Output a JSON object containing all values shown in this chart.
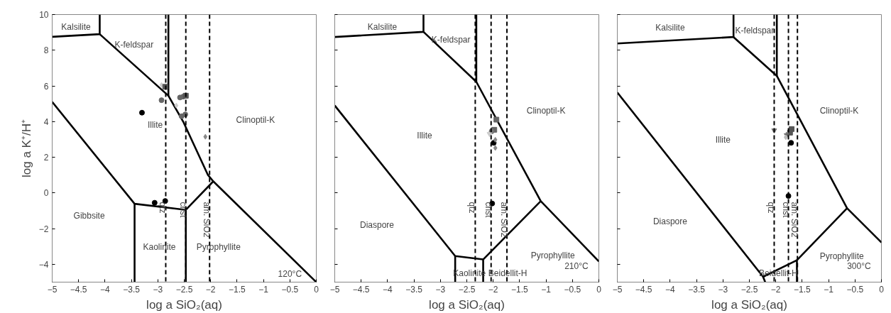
{
  "chart_data": [
    {
      "type": "line",
      "xlabel": "log a SiO₂(aq)",
      "ylabel": "log a K⁺/H⁺",
      "xlim": [
        -5,
        0
      ],
      "ylim": [
        -5,
        10
      ],
      "xticks": [
        -5,
        -4.5,
        -4,
        -3.5,
        -3,
        -2.5,
        -2,
        -1.5,
        -1,
        -0.5,
        0
      ],
      "yticks": [
        -4,
        -2,
        0,
        2,
        4,
        6,
        8,
        10
      ],
      "grid": false,
      "line_style": "solid",
      "series": [
        {
          "color": "#000000",
          "x": [
            -5,
            -4.1,
            -4.1
          ],
          "values": [
            8.75,
            8.9,
            10
          ]
        },
        {
          "color": "#000000",
          "x": [
            -4.1,
            -2.8,
            -2.8
          ],
          "values": [
            8.9,
            5.45,
            10
          ]
        },
        {
          "color": "#000000",
          "x": [
            -2.8,
            -2.52,
            -2.05,
            -1.95,
            0
          ],
          "values": [
            5.45,
            4.0,
            1.0,
            0.65,
            -5
          ]
        },
        {
          "color": "#000000",
          "x": [
            -1.95,
            -2.47,
            -2.47
          ],
          "values": [
            0.65,
            -0.95,
            -5
          ]
        },
        {
          "color": "#000000",
          "x": [
            -5,
            -3.44,
            -2.47
          ],
          "values": [
            5.1,
            -0.61,
            -0.95
          ]
        },
        {
          "color": "#000000",
          "x": [
            -3.44,
            -3.44
          ],
          "values": [
            -0.61,
            -5
          ]
        },
        {
          "type": "scatter",
          "marker": "circle",
          "color": "#000000",
          "x": [
            -3.3,
            -3.06,
            -2.86
          ],
          "values": [
            4.5,
            -0.55,
            -0.45
          ]
        },
        {
          "type": "scatter",
          "marker": "circle",
          "color": "#666666",
          "x": [
            -2.93,
            -2.58,
            -2.52,
            -2.55,
            -2.48
          ],
          "values": [
            5.2,
            5.35,
            5.4,
            4.3,
            4.4
          ]
        },
        {
          "type": "scatter",
          "marker": "diamond",
          "color": "#cccccc",
          "x": [
            -2.93,
            -2.65
          ],
          "values": [
            6.05,
            4.9
          ]
        },
        {
          "type": "scatter",
          "marker": "square",
          "color": "#555555",
          "x": [
            -2.86,
            -2.47
          ],
          "values": [
            5.95,
            5.45
          ]
        },
        {
          "type": "scatter",
          "marker": "diamond",
          "color": "#888888",
          "x": [
            -2.1
          ],
          "values": [
            3.15
          ]
        }
      ],
      "ref_lines": [
        {
          "axis": "x",
          "value": -2.85,
          "label": "qtz",
          "color": "#000000",
          "line_style": "dashed"
        },
        {
          "axis": "x",
          "value": -2.47,
          "label": "crist",
          "color": "#000000",
          "line_style": "dashed"
        },
        {
          "axis": "x",
          "value": -2.02,
          "label": "am. SiO2",
          "color": "#000000",
          "line_style": "dashed"
        }
      ],
      "annotations": [
        "Kalsilite",
        "K-feldspar",
        "Illite",
        "Clinoptil-K",
        "Gibbsite",
        "Kaolinite",
        "Pyrophyllite",
        "120°C"
      ]
    },
    {
      "type": "line",
      "xlabel": "log a SiO₂(aq)",
      "xlim": [
        -5,
        0
      ],
      "ylim": [
        -5,
        10
      ],
      "xticks": [
        -5,
        -4.5,
        -4,
        -3.5,
        -3,
        -2.5,
        -2,
        -1.5,
        -1,
        -0.5,
        0
      ],
      "yticks": [
        -4,
        -2,
        0,
        2,
        4,
        6,
        8,
        10
      ],
      "tick_labels": "x",
      "grid": false,
      "line_style": "solid",
      "series": [
        {
          "color": "#000000",
          "x": [
            -5,
            -3.32,
            -3.32
          ],
          "values": [
            8.74,
            9.03,
            10
          ]
        },
        {
          "color": "#000000",
          "x": [
            -3.32,
            -2.32,
            -2.32
          ],
          "values": [
            9.03,
            6.23,
            10
          ]
        },
        {
          "color": "#000000",
          "x": [
            -2.32,
            -1.1,
            0
          ],
          "values": [
            6.23,
            -0.46,
            -3.84
          ]
        },
        {
          "color": "#000000",
          "x": [
            -1.1,
            -2.19,
            -2.19
          ],
          "values": [
            -0.46,
            -3.73,
            -5
          ]
        },
        {
          "color": "#000000",
          "x": [
            -5,
            -2.72,
            -2.19
          ],
          "values": [
            4.9,
            -3.54,
            -3.73
          ]
        },
        {
          "color": "#000000",
          "x": [
            -2.72,
            -2.72
          ],
          "values": [
            -3.54,
            -5
          ]
        },
        {
          "type": "scatter",
          "marker": "circle",
          "color": "#000000",
          "x": [
            -1.99,
            -2.02
          ],
          "values": [
            2.81,
            -0.59
          ]
        },
        {
          "type": "scatter",
          "marker": "square",
          "color": "#666666",
          "x": [
            -1.94,
            -1.98
          ],
          "values": [
            4.11,
            3.54
          ]
        },
        {
          "type": "scatter",
          "marker": "circle",
          "color": "#777777",
          "x": [
            -2.03
          ],
          "values": [
            3.45
          ]
        },
        {
          "type": "scatter",
          "marker": "diamond",
          "color": "#888888",
          "x": [
            -1.96,
            -1.96
          ],
          "values": [
            2.98,
            2.52
          ]
        },
        {
          "type": "scatter",
          "marker": "triangle",
          "color": "#cccccc",
          "x": [
            -2.07
          ],
          "values": [
            3.31
          ]
        }
      ],
      "ref_lines": [
        {
          "axis": "x",
          "value": -2.34,
          "label": "qtz",
          "color": "#000000",
          "line_style": "dashed"
        },
        {
          "axis": "x",
          "value": -2.04,
          "label": "crist",
          "color": "#000000",
          "line_style": "dashed"
        },
        {
          "axis": "x",
          "value": -1.74,
          "label": "am. SiO2",
          "color": "#000000",
          "line_style": "dashed"
        }
      ],
      "annotations": [
        "Kalsilite",
        "K-feldspar",
        "Illite",
        "Clinoptil-K",
        "Diaspore",
        "Kaolinite",
        "Beidellit-H",
        "Pyrophyllite",
        "210°C"
      ]
    },
    {
      "type": "line",
      "xlabel": "log a SiO₂(aq)",
      "xlim": [
        -5,
        0
      ],
      "ylim": [
        -5,
        10
      ],
      "xticks": [
        -5,
        -4.5,
        -4,
        -3.5,
        -3,
        -2.5,
        -2,
        -1.5,
        -1,
        -0.5,
        0
      ],
      "yticks": [
        -4,
        -2,
        0,
        2,
        4,
        6,
        8,
        10
      ],
      "tick_labels": "x",
      "grid": false,
      "line_style": "solid",
      "series": [
        {
          "color": "#000000",
          "x": [
            -5,
            -2.8,
            -2.8
          ],
          "values": [
            8.38,
            8.74,
            10
          ]
        },
        {
          "color": "#000000",
          "x": [
            -2.8,
            -1.98,
            -1.98
          ],
          "values": [
            8.74,
            6.56,
            10
          ]
        },
        {
          "color": "#000000",
          "x": [
            -1.98,
            -0.65,
            0
          ],
          "values": [
            6.56,
            -0.86,
            -2.78
          ]
        },
        {
          "color": "#000000",
          "x": [
            -0.65,
            -1.6,
            -1.6
          ],
          "values": [
            -0.86,
            -3.77,
            -5
          ]
        },
        {
          "color": "#000000",
          "x": [
            -5,
            -2.24,
            -1.6
          ],
          "values": [
            5.63,
            -4.7,
            -3.77
          ]
        },
        {
          "color": "#000000",
          "x": [
            -2.24,
            -2.2
          ],
          "values": [
            -4.7,
            -5
          ]
        },
        {
          "type": "scatter",
          "marker": "circle",
          "color": "#000000",
          "x": [
            -1.71,
            -1.76
          ],
          "values": [
            2.81,
            -0.17
          ]
        },
        {
          "type": "scatter",
          "marker": "triangle",
          "color": "#777777",
          "x": [
            -2.03
          ],
          "values": [
            3.51
          ]
        },
        {
          "type": "scatter",
          "marker": "square",
          "color": "#555555",
          "x": [
            -1.7,
            -1.73
          ],
          "values": [
            3.58,
            3.38
          ]
        },
        {
          "type": "scatter",
          "marker": "star",
          "color": "#666666",
          "x": [
            -1.8
          ],
          "values": [
            3.27
          ]
        },
        {
          "type": "scatter",
          "marker": "diamond",
          "color": "#bbbbbb",
          "x": [
            -1.81
          ],
          "values": [
            3.12
          ]
        }
      ],
      "ref_lines": [
        {
          "axis": "x",
          "value": -2.03,
          "label": "qtz",
          "color": "#000000",
          "line_style": "dashed"
        },
        {
          "axis": "x",
          "value": -1.76,
          "label": "crist",
          "color": "#000000",
          "line_style": "dashed"
        },
        {
          "axis": "x",
          "value": -1.59,
          "label": "am. SiO2",
          "color": "#000000",
          "line_style": "dashed"
        }
      ],
      "annotations": [
        "Kalsilite",
        "K-feldspar",
        "Illite",
        "Clinoptil-K",
        "Diaspore",
        "Beidellit-H",
        "Pyrophyllite",
        "300°C"
      ]
    }
  ]
}
